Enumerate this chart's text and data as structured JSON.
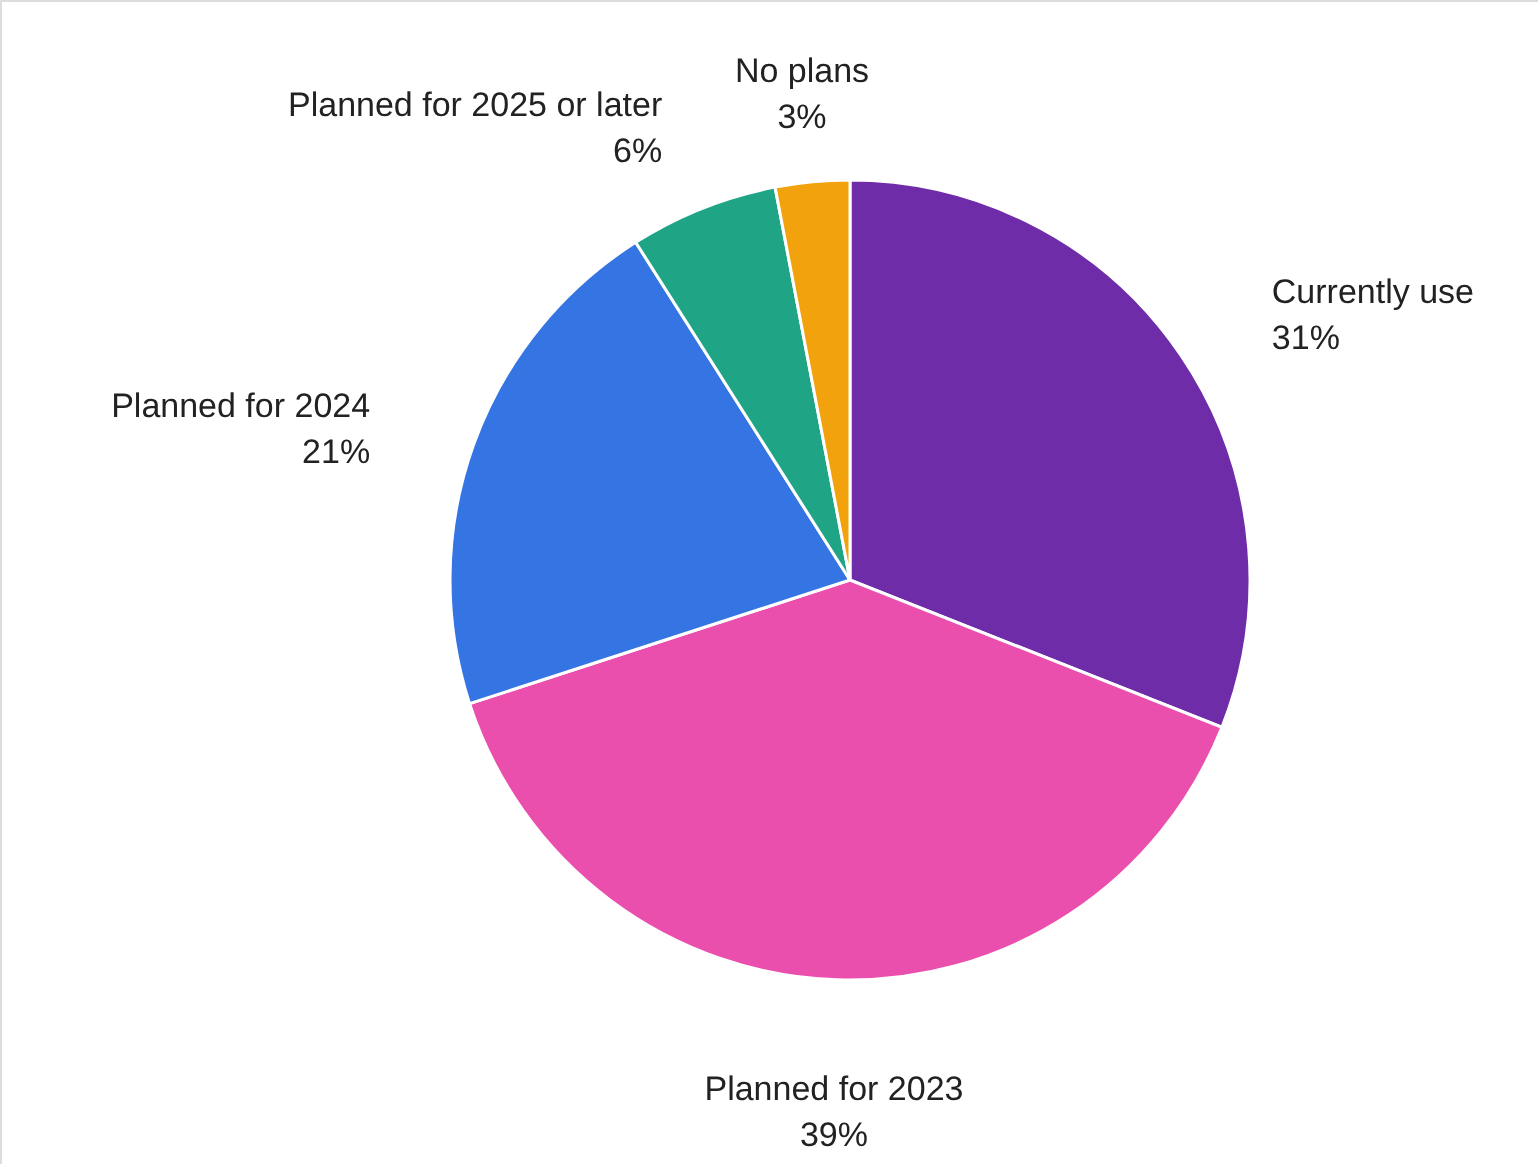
{
  "chart_data": {
    "type": "pie",
    "categories": [
      "Currently use",
      "Planned for 2023",
      "Planned for 2024",
      "Planned for 2025 or later",
      "No plans"
    ],
    "values": [
      31,
      39,
      21,
      6,
      3
    ],
    "value_labels": [
      "31%",
      "39%",
      "21%",
      "6%",
      "3%"
    ],
    "colors": [
      "#6f2ca8",
      "#eb4fae",
      "#3574e3",
      "#1fa586",
      "#f2a20d"
    ]
  }
}
